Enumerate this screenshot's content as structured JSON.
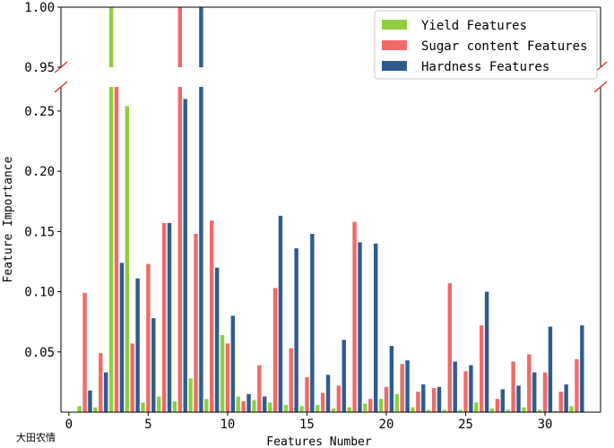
{
  "chart_data": {
    "type": "bar",
    "xlabel": "Features Number",
    "ylabel": "Feature Importance",
    "x_ticks": [
      0,
      5,
      10,
      15,
      20,
      25,
      30
    ],
    "y_ticks_lower": [
      "0.05",
      "0.10",
      "0.15",
      "0.20",
      "0.25"
    ],
    "y_ticks_upper": [
      "0.95",
      "1.00"
    ],
    "xlim": [
      -0.5,
      33.5
    ],
    "ylim_lower": [
      0,
      0.27
    ],
    "ylim_upper": [
      0.95,
      1.0
    ],
    "broken_axis": true,
    "legend_position": "top-right",
    "x": [
      1,
      2,
      3,
      4,
      5,
      6,
      7,
      8,
      9,
      10,
      11,
      12,
      13,
      14,
      15,
      16,
      17,
      18,
      19,
      20,
      21,
      22,
      23,
      24,
      25,
      26,
      27,
      28,
      29,
      30,
      31,
      32
    ],
    "series": [
      {
        "name": "Yield Features",
        "color": "#8fce3c",
        "values": [
          0.005,
          0.004,
          1.0,
          0.254,
          0.008,
          0.013,
          0.009,
          0.028,
          0.011,
          0.064,
          0.013,
          0.01,
          0.008,
          0.006,
          0.005,
          0.006,
          0.003,
          0.004,
          0.007,
          0.011,
          0.015,
          0.004,
          0.002,
          0.002,
          0.002,
          0.008,
          0.003,
          0.002,
          0.004,
          0.002,
          0.001,
          0.005
        ]
      },
      {
        "name": "Sugar content Features",
        "color": "#f06a6a",
        "values": [
          0.099,
          0.049,
          0.27,
          0.057,
          0.123,
          0.157,
          1.0,
          0.148,
          0.159,
          0.057,
          0.009,
          0.039,
          0.103,
          0.053,
          0.029,
          0.016,
          0.022,
          0.158,
          0.011,
          0.021,
          0.04,
          0.017,
          0.02,
          0.107,
          0.034,
          0.072,
          0.011,
          0.042,
          0.048,
          0.033,
          0.017,
          0.044
        ]
      },
      {
        "name": "Hardness Features",
        "color": "#2e5c8e",
        "values": [
          0.018,
          0.033,
          0.124,
          0.111,
          0.078,
          0.157,
          0.26,
          1.0,
          0.12,
          0.08,
          0.015,
          0.013,
          0.163,
          0.136,
          0.148,
          0.031,
          0.06,
          0.141,
          0.14,
          0.055,
          0.043,
          0.023,
          0.021,
          0.042,
          0.039,
          0.1,
          0.019,
          0.022,
          0.033,
          0.071,
          0.023,
          0.072
        ]
      }
    ]
  },
  "watermark_text": "大田农情"
}
